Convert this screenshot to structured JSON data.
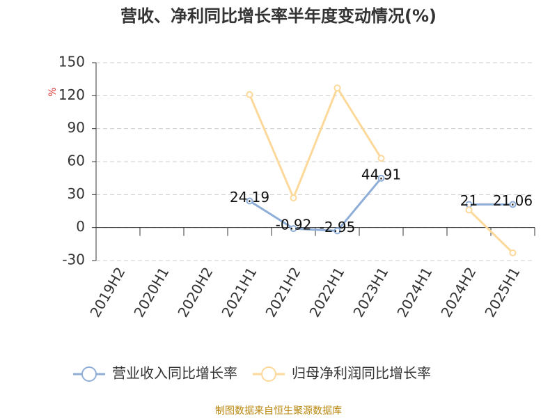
{
  "chart_data": {
    "type": "line",
    "title": "营收、净利同比增长率半年度变动情况(%)",
    "y_label": "%",
    "source": "制图数据来自恒生聚源数据库",
    "categories": [
      "2019H2",
      "2020H1",
      "2020H2",
      "2021H1",
      "2021H2",
      "2022H1",
      "2023H1",
      "2024H1",
      "2024H2",
      "2025H1"
    ],
    "series": [
      {
        "name": "营业收入同比增长率",
        "color": "#8eaed8",
        "labels": true,
        "values": [
          null,
          null,
          null,
          24.19,
          -0.92,
          -2.95,
          44.91,
          null,
          21,
          21.06
        ]
      },
      {
        "name": "归母净利润同比增长率",
        "color": "#fcd99a",
        "labels": false,
        "values": [
          null,
          null,
          null,
          121,
          27,
          127,
          63,
          null,
          16,
          -23
        ]
      }
    ],
    "ylim": [
      -30,
      150
    ],
    "yticks": [
      -30,
      0,
      30,
      60,
      90,
      120,
      150
    ],
    "grid": true
  }
}
